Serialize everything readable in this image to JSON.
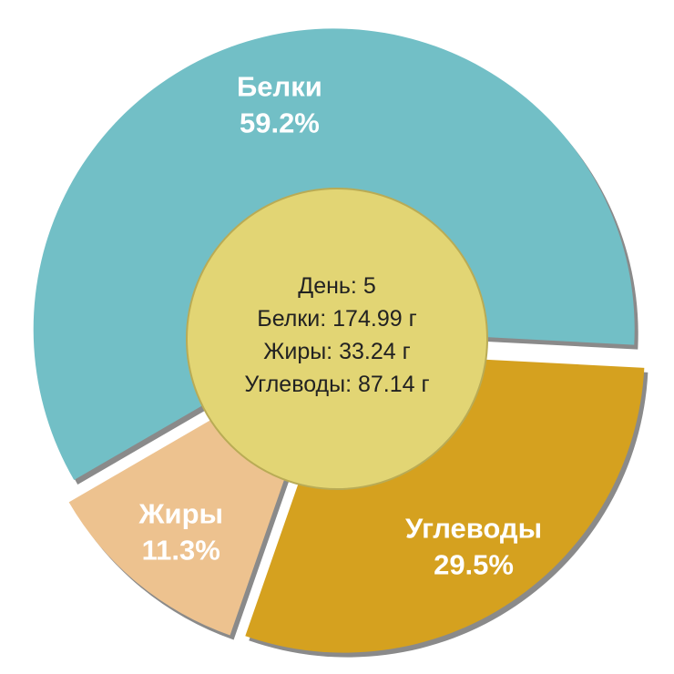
{
  "chart_data": {
    "type": "pie",
    "categories": [
      "Белки",
      "Жиры",
      "Углеводы"
    ],
    "values": [
      59.2,
      11.3,
      29.5
    ],
    "value_labels": [
      "59.2%",
      "11.3%",
      "29.5%"
    ],
    "colors": [
      "#72bfc6",
      "#edc28f",
      "#d5a11f"
    ],
    "center_lines": [
      "День: 5",
      "Белки: 174.99 г",
      "Жиры: 33.24 г",
      "Углеводы: 87.14 г"
    ]
  }
}
